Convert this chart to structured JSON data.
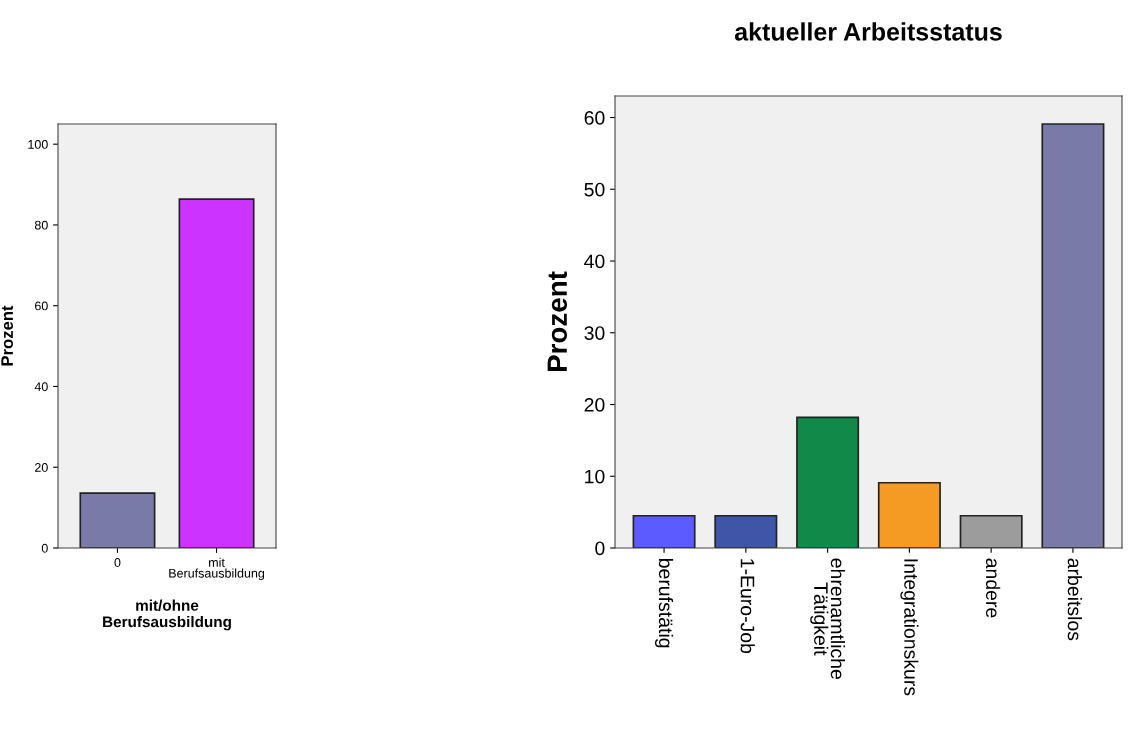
{
  "chart_data": [
    {
      "type": "bar",
      "xlabel": "mit/ohne\nBerufsausbildung",
      "ylabel": "Prozent",
      "categories": [
        "0",
        "mit\nBerufsausbildung"
      ],
      "values": [
        13.6,
        86.4
      ],
      "colors": [
        "#7a7aa8",
        "#cc33ff"
      ],
      "ylim": [
        0,
        105
      ],
      "yticks": [
        0,
        20,
        40,
        60,
        80,
        100
      ],
      "grid": false,
      "legend": false
    },
    {
      "type": "bar",
      "title": "aktueller Arbeitsstatus",
      "ylabel": "Prozent",
      "categories": [
        "berufstätig",
        "1-Euro-Job",
        "ehrenamtliche\nTätigkeit",
        "Integrationskurs",
        "andere",
        "arbeitslos"
      ],
      "values": [
        4.5,
        4.5,
        18.2,
        9.1,
        4.5,
        59.1
      ],
      "colors": [
        "#5b5bff",
        "#3e55a8",
        "#118a49",
        "#f59a22",
        "#9c9c9c",
        "#7a7aa8"
      ],
      "ylim": [
        0,
        63
      ],
      "yticks": [
        0,
        10,
        20,
        30,
        40,
        50,
        60
      ],
      "grid": false,
      "legend": false
    }
  ]
}
